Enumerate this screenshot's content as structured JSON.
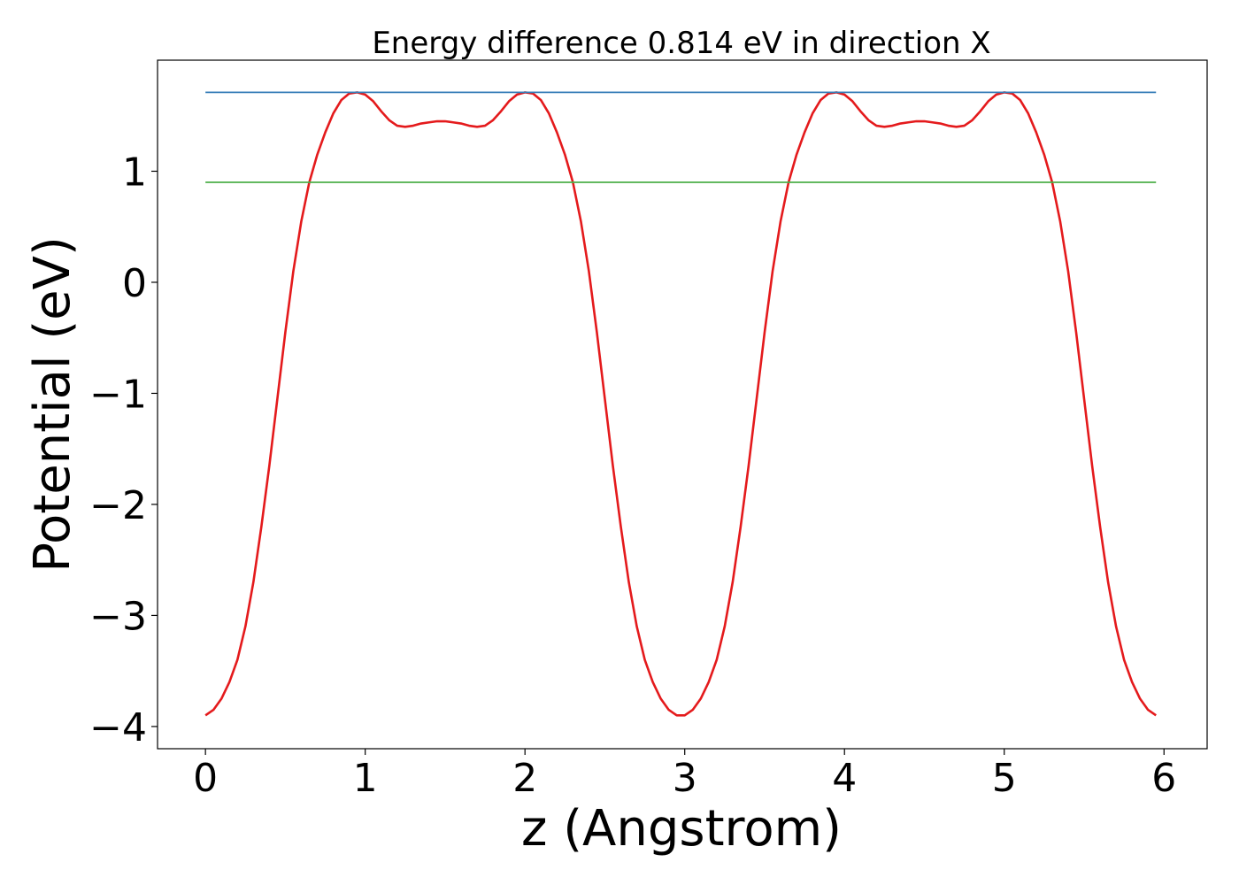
{
  "chart_data": {
    "type": "line",
    "title": "Energy difference 0.814 eV in direction X",
    "xlabel": "z (Angstrom)",
    "ylabel": "Potential (eV)",
    "xlim": [
      -0.3,
      6.27
    ],
    "ylim": [
      -4.2,
      2.0
    ],
    "xticks": [
      0,
      1,
      2,
      3,
      4,
      5,
      6
    ],
    "xtick_labels": [
      "0",
      "1",
      "2",
      "3",
      "4",
      "5",
      "6"
    ],
    "yticks": [
      -4,
      -3,
      -2,
      -1,
      0,
      1
    ],
    "ytick_labels": [
      "−4",
      "−3",
      "−2",
      "−1",
      "0",
      "1"
    ],
    "grid": false,
    "colors": {
      "potential": "#e41a1c",
      "max_level": "#377eb8",
      "mean_level": "#4daf4a"
    },
    "series": [
      {
        "kind": "curve",
        "x": [
          0,
          0.05,
          0.1,
          0.15,
          0.2,
          0.25,
          0.3,
          0.35,
          0.4,
          0.45,
          0.5,
          0.55,
          0.6,
          0.65,
          0.7,
          0.75,
          0.8,
          0.85,
          0.9,
          0.95,
          1.0,
          1.05,
          1.1,
          1.15,
          1.2,
          1.25,
          1.3,
          1.35,
          1.4,
          1.45,
          1.5,
          1.55,
          1.6,
          1.65,
          1.7,
          1.75,
          1.8,
          1.85,
          1.9,
          1.95,
          2.0,
          2.05,
          2.1,
          2.15,
          2.2,
          2.25,
          2.3,
          2.35,
          2.4,
          2.45,
          2.5,
          2.55,
          2.6,
          2.65,
          2.7,
          2.75,
          2.8,
          2.85,
          2.9,
          2.95,
          3.0,
          3.05,
          3.1,
          3.15,
          3.2,
          3.25,
          3.3,
          3.35,
          3.4,
          3.45,
          3.5,
          3.55,
          3.6,
          3.65,
          3.7,
          3.75,
          3.8,
          3.85,
          3.9,
          3.95,
          4.0,
          4.05,
          4.1,
          4.15,
          4.2,
          4.25,
          4.3,
          4.35,
          4.4,
          4.45,
          4.5,
          4.55,
          4.6,
          4.65,
          4.7,
          4.75,
          4.8,
          4.85,
          4.9,
          4.95,
          5.0,
          5.05,
          5.1,
          5.15,
          5.2,
          5.25,
          5.3,
          5.35,
          5.4,
          5.45,
          5.5,
          5.55,
          5.6,
          5.65,
          5.7,
          5.75,
          5.8,
          5.85,
          5.9,
          5.95
        ],
        "y": [
          -3.9,
          -3.85,
          -3.75,
          -3.6,
          -3.4,
          -3.1,
          -2.7,
          -2.2,
          -1.65,
          -1.05,
          -0.45,
          0.1,
          0.55,
          0.9,
          1.15,
          1.35,
          1.52,
          1.64,
          1.7,
          1.71,
          1.69,
          1.63,
          1.54,
          1.46,
          1.41,
          1.4,
          1.41,
          1.43,
          1.44,
          1.45,
          1.45,
          1.44,
          1.43,
          1.41,
          1.4,
          1.41,
          1.46,
          1.54,
          1.63,
          1.69,
          1.71,
          1.7,
          1.64,
          1.52,
          1.35,
          1.15,
          0.9,
          0.55,
          0.1,
          -0.45,
          -1.05,
          -1.65,
          -2.2,
          -2.7,
          -3.1,
          -3.4,
          -3.6,
          -3.75,
          -3.85,
          -3.9,
          -3.9,
          -3.85,
          -3.75,
          -3.6,
          -3.4,
          -3.1,
          -2.7,
          -2.2,
          -1.65,
          -1.05,
          -0.45,
          0.1,
          0.55,
          0.9,
          1.15,
          1.35,
          1.52,
          1.64,
          1.7,
          1.71,
          1.69,
          1.63,
          1.54,
          1.46,
          1.41,
          1.4,
          1.41,
          1.43,
          1.44,
          1.45,
          1.45,
          1.44,
          1.43,
          1.41,
          1.4,
          1.41,
          1.46,
          1.54,
          1.63,
          1.69,
          1.71,
          1.7,
          1.64,
          1.52,
          1.35,
          1.15,
          0.9,
          0.55,
          0.1,
          -0.45,
          -1.05,
          -1.65,
          -2.2,
          -2.7,
          -3.1,
          -3.4,
          -3.6,
          -3.75,
          -3.85,
          -3.9
        ]
      },
      {
        "kind": "level",
        "x": [
          0,
          5.95
        ],
        "y": [
          1.71,
          1.71
        ]
      },
      {
        "kind": "level",
        "x": [
          0,
          5.95
        ],
        "y": [
          0.9,
          0.9
        ]
      }
    ]
  }
}
